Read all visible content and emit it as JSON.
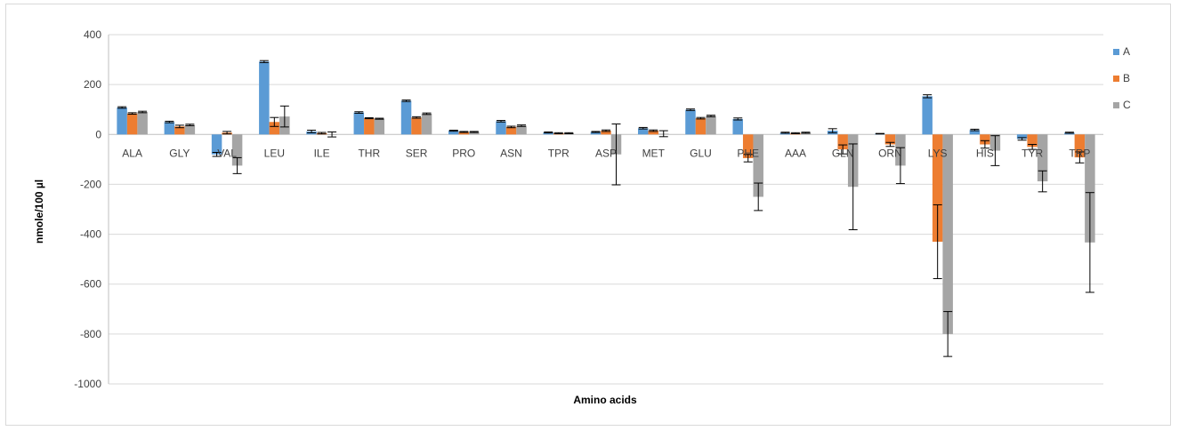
{
  "colors": {
    "A": "#5b9bd5",
    "B": "#ed7d31",
    "C": "#a5a5a5",
    "grid": "#d9d9d9",
    "axis": "#bfbfbf",
    "error": "#000000"
  },
  "chart_data": {
    "type": "bar",
    "title": "",
    "xlabel": "Amino acids",
    "ylabel": "nmole/100 µl",
    "ylim": [
      -1000,
      400
    ],
    "yticks": [
      400,
      200,
      0,
      -200,
      -400,
      -600,
      -800,
      -1000
    ],
    "grid": true,
    "legend_position": "right",
    "categories": [
      "ALA",
      "GLY",
      "VAL",
      "LEU",
      "ILE",
      "THR",
      "SER",
      "PRO",
      "ASN",
      "TPR",
      "ASP",
      "MET",
      "GLU",
      "PHE",
      "AAA",
      "GLN",
      "ORN",
      "LYS",
      "HIS",
      "TYR",
      "TRP"
    ],
    "series": [
      {
        "name": "A",
        "values": [
          108,
          50,
          -80,
          292,
          12,
          88,
          135,
          15,
          53,
          8,
          10,
          25,
          99,
          62,
          7,
          15,
          3,
          153,
          18,
          -18,
          7
        ],
        "errors": [
          3,
          3,
          8,
          4,
          5,
          3,
          3,
          2,
          3,
          2,
          2,
          3,
          3,
          4,
          2,
          8,
          1,
          6,
          3,
          5,
          2
        ]
      },
      {
        "name": "B",
        "values": [
          84,
          32,
          7,
          50,
          5,
          65,
          68,
          10,
          30,
          5,
          15,
          15,
          65,
          -95,
          5,
          -60,
          -40,
          -430,
          -40,
          -50,
          -92
        ],
        "errors": [
          3,
          5,
          5,
          18,
          3,
          2,
          3,
          2,
          3,
          2,
          3,
          3,
          3,
          15,
          2,
          18,
          8,
          148,
          15,
          10,
          22
        ]
      },
      {
        "name": "C",
        "values": [
          90,
          38,
          -125,
          72,
          0,
          63,
          83,
          10,
          35,
          5,
          -80,
          3,
          74,
          -250,
          7,
          -210,
          -125,
          -800,
          -65,
          -188,
          -433
        ],
        "errors": [
          3,
          3,
          32,
          42,
          10,
          2,
          3,
          2,
          3,
          2,
          122,
          12,
          3,
          55,
          2,
          172,
          72,
          90,
          60,
          42,
          200
        ]
      }
    ]
  }
}
